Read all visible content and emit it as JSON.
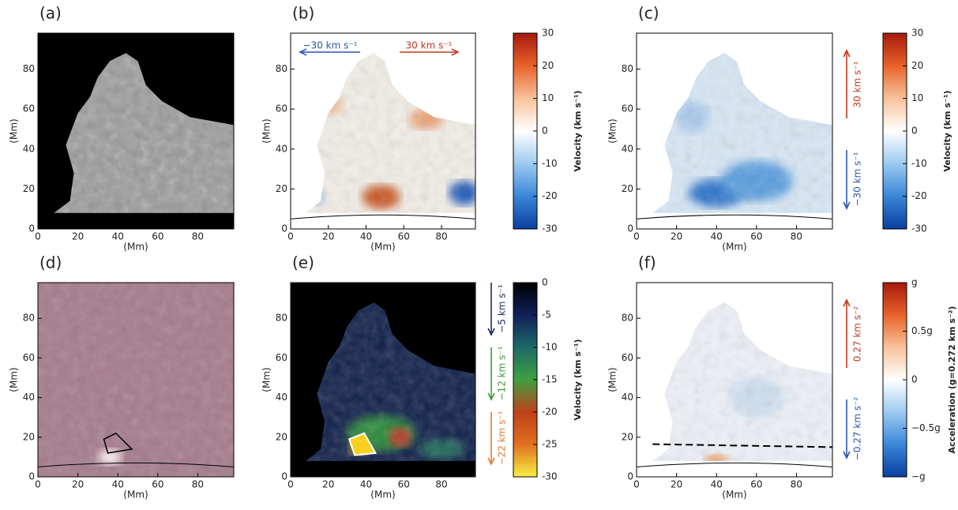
{
  "panels": [
    {
      "label": "(a)",
      "xlabel": "(Mm)",
      "ylabel": "(Mm)",
      "xlim": [
        0,
        98
      ],
      "ylim": [
        0,
        98
      ],
      "xticks": [
        0,
        20,
        40,
        60,
        80
      ],
      "yticks": [
        0,
        20,
        40,
        60,
        80
      ]
    },
    {
      "label": "(b)",
      "xlabel": "(Mm)",
      "ylabel": "(Mm)",
      "xlim": [
        0,
        98
      ],
      "ylim": [
        0,
        98
      ],
      "xticks": [
        0,
        20,
        40,
        60,
        80
      ],
      "yticks": [
        0,
        20,
        40,
        60,
        80
      ],
      "colorbar": {
        "label": "Velocity (km s⁻¹)",
        "lim": [
          -30,
          30
        ],
        "ticks": [
          30,
          20,
          10,
          0,
          -10,
          -20,
          -30
        ],
        "colors": [
          "#a61a0c",
          "#e8622a",
          "#f7c29a",
          "#ffffff",
          "#9ccaf0",
          "#3a86d8",
          "#0a3fa0"
        ]
      },
      "arrows": [
        {
          "label": "−30 km s⁻¹",
          "color": "#2a55b0"
        },
        {
          "label": "30 km s⁻¹",
          "color": "#c0391e"
        }
      ]
    },
    {
      "label": "(c)",
      "xlabel": "(Mm)",
      "ylabel": "(Mm)",
      "xlim": [
        0,
        98
      ],
      "ylim": [
        0,
        98
      ],
      "xticks": [
        0,
        20,
        40,
        60,
        80
      ],
      "yticks": [
        0,
        20,
        40,
        60,
        80
      ],
      "colorbar": {
        "label": "Velocity (km s⁻¹)",
        "lim": [
          -30,
          30
        ],
        "ticks": [
          30,
          20,
          10,
          0,
          -10,
          -20,
          -30
        ],
        "colors": [
          "#a61a0c",
          "#e8622a",
          "#f7c29a",
          "#ffffff",
          "#9ccaf0",
          "#3a86d8",
          "#0a3fa0"
        ]
      },
      "arrows": [
        {
          "label": "30 km s⁻¹",
          "color": "#c0391e"
        },
        {
          "label": "−30 km s⁻¹",
          "color": "#2a55b0"
        }
      ]
    },
    {
      "label": "(d)",
      "xlabel": "(Mm)",
      "ylabel": "(Mm)",
      "xlim": [
        0,
        98
      ],
      "ylim": [
        0,
        98
      ],
      "xticks": [
        0,
        20,
        40,
        60,
        80
      ],
      "yticks": [
        0,
        20,
        40,
        60,
        80
      ]
    },
    {
      "label": "(e)",
      "xlabel": "(Mm)",
      "ylabel": "(Mm)",
      "xlim": [
        0,
        98
      ],
      "ylim": [
        0,
        98
      ],
      "xticks": [
        0,
        20,
        40,
        60,
        80
      ],
      "yticks": [
        0,
        20,
        40,
        60,
        80
      ],
      "colorbar": {
        "label": "Velocity (km s⁻¹)",
        "lim": [
          -30,
          0
        ],
        "ticks": [
          0,
          -5,
          -10,
          -15,
          -20,
          -25,
          -30
        ],
        "colors": [
          "#000000",
          "#10205a",
          "#1d6a6a",
          "#3fa040",
          "#c0401a",
          "#e07020",
          "#f8f040"
        ]
      },
      "arrows": [
        {
          "label": "−5 km s⁻¹",
          "color": "#1a2a5a"
        },
        {
          "label": "−12 km s⁻¹",
          "color": "#3a9a3a"
        },
        {
          "label": "−22 km s⁻¹",
          "color": "#e07a30"
        }
      ]
    },
    {
      "label": "(f)",
      "xlabel": "(Mm)",
      "ylabel": "(Mm)",
      "xlim": [
        0,
        98
      ],
      "ylim": [
        0,
        98
      ],
      "xticks": [
        0,
        20,
        40,
        60,
        80
      ],
      "yticks": [
        0,
        20,
        40,
        60,
        80
      ],
      "colorbar": {
        "label": "Acceleration (g=0.272 km s⁻²)",
        "lim": [
          -0.272,
          0.272
        ],
        "ticks": [
          {
            "value": 0.272,
            "label": "g"
          },
          {
            "value": 0.136,
            "label": "0.5g"
          },
          0,
          {
            "value": -0.136,
            "label": "−0.5g"
          },
          {
            "value": -0.272,
            "label": "−g"
          }
        ],
        "colors": [
          "#a61a0c",
          "#e8622a",
          "#f7c29a",
          "#ffffff",
          "#9ccaf0",
          "#3a86d8",
          "#0a3fa0"
        ]
      },
      "arrows": [
        {
          "label": "0.27 km s⁻²",
          "color": "#c0391e"
        },
        {
          "label": "−0.27 km s⁻²",
          "color": "#2a55b0"
        }
      ]
    }
  ]
}
